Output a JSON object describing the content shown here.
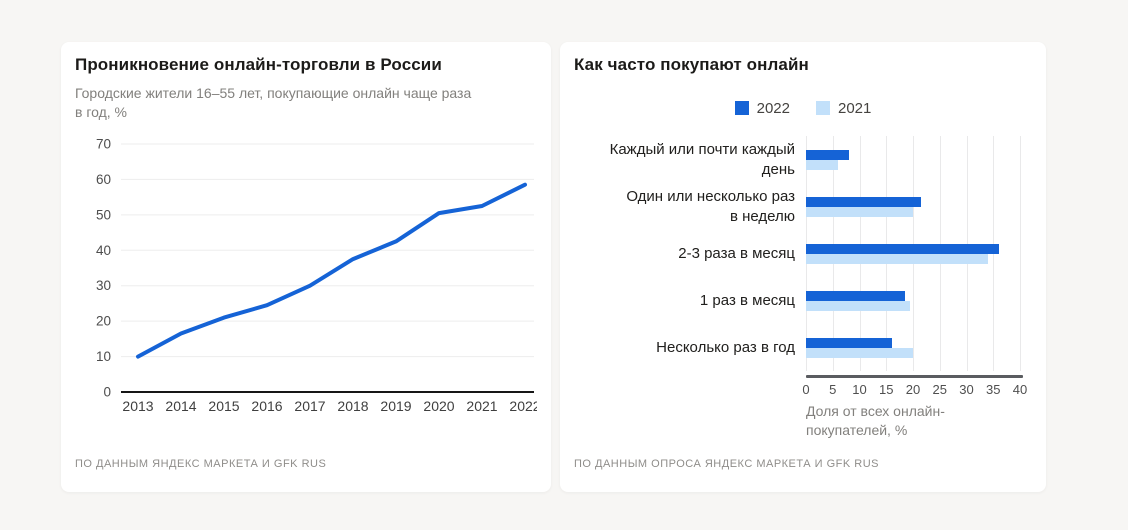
{
  "colors": {
    "accent_2022": "#1563d6",
    "accent_2021": "#c2e0fa",
    "grid": "#ededed",
    "axis_dark": "#161616",
    "axis_gray": "#5a5c60",
    "card_bg": "#ffffff",
    "page_bg": "#f7f6f4"
  },
  "left_card": {
    "title": "Проникновение онлайн-торговли в России",
    "subtitle": "Городские жители 16–55 лет, покупающие онлайн чаще раза\nв год, %",
    "source": "ПО ДАННЫМ ЯНДЕКС МАРКЕТА И GFK RUS"
  },
  "right_card": {
    "title": "Как часто покупают онлайн",
    "legend": [
      {
        "label": "2022",
        "color": "#1563d6"
      },
      {
        "label": "2021",
        "color": "#c2e0fa"
      }
    ],
    "xlabel": "Доля от всех онлайн-\nпокупателей, %",
    "source": "ПО ДАННЫМ ОПРОСА ЯНДЕКС МАРКЕТА И GFK RUS"
  },
  "chart_data": [
    {
      "type": "line",
      "title": "Проникновение онлайн-торговли в России",
      "subtitle": "Городские жители 16–55 лет, покупающие онлайн чаще раза в год, %",
      "x": [
        "2013",
        "2014",
        "2015",
        "2016",
        "2017",
        "2018",
        "2019",
        "2020",
        "2021",
        "2022"
      ],
      "values": [
        10,
        16.5,
        21,
        24.5,
        30,
        37.5,
        42.5,
        50.5,
        52.5,
        58.5
      ],
      "ylim": [
        0,
        70
      ],
      "yticks": [
        0,
        10,
        20,
        30,
        40,
        50,
        60,
        70
      ],
      "line_color": "#1563d6",
      "grid": true,
      "legend_position": "none"
    },
    {
      "type": "bar",
      "orientation": "horizontal",
      "title": "Как часто покупают онлайн",
      "categories": [
        "Каждый или почти каждый\nдень",
        "Один или несколько раз\nв неделю",
        "2-3 раза в месяц",
        "1 раз в месяц",
        "Несколько раз в год"
      ],
      "series": [
        {
          "name": "2022",
          "color": "#1563d6",
          "values": [
            8,
            21.5,
            36,
            18.5,
            16
          ]
        },
        {
          "name": "2021",
          "color": "#c2e0fa",
          "values": [
            6,
            20,
            34,
            19.5,
            20
          ]
        }
      ],
      "xlim": [
        0,
        40
      ],
      "xticks": [
        0,
        5,
        10,
        15,
        20,
        25,
        30,
        35,
        40
      ],
      "xlabel": "Доля от всех онлайн-покупателей, %",
      "grid": true,
      "legend_position": "top-center"
    }
  ]
}
